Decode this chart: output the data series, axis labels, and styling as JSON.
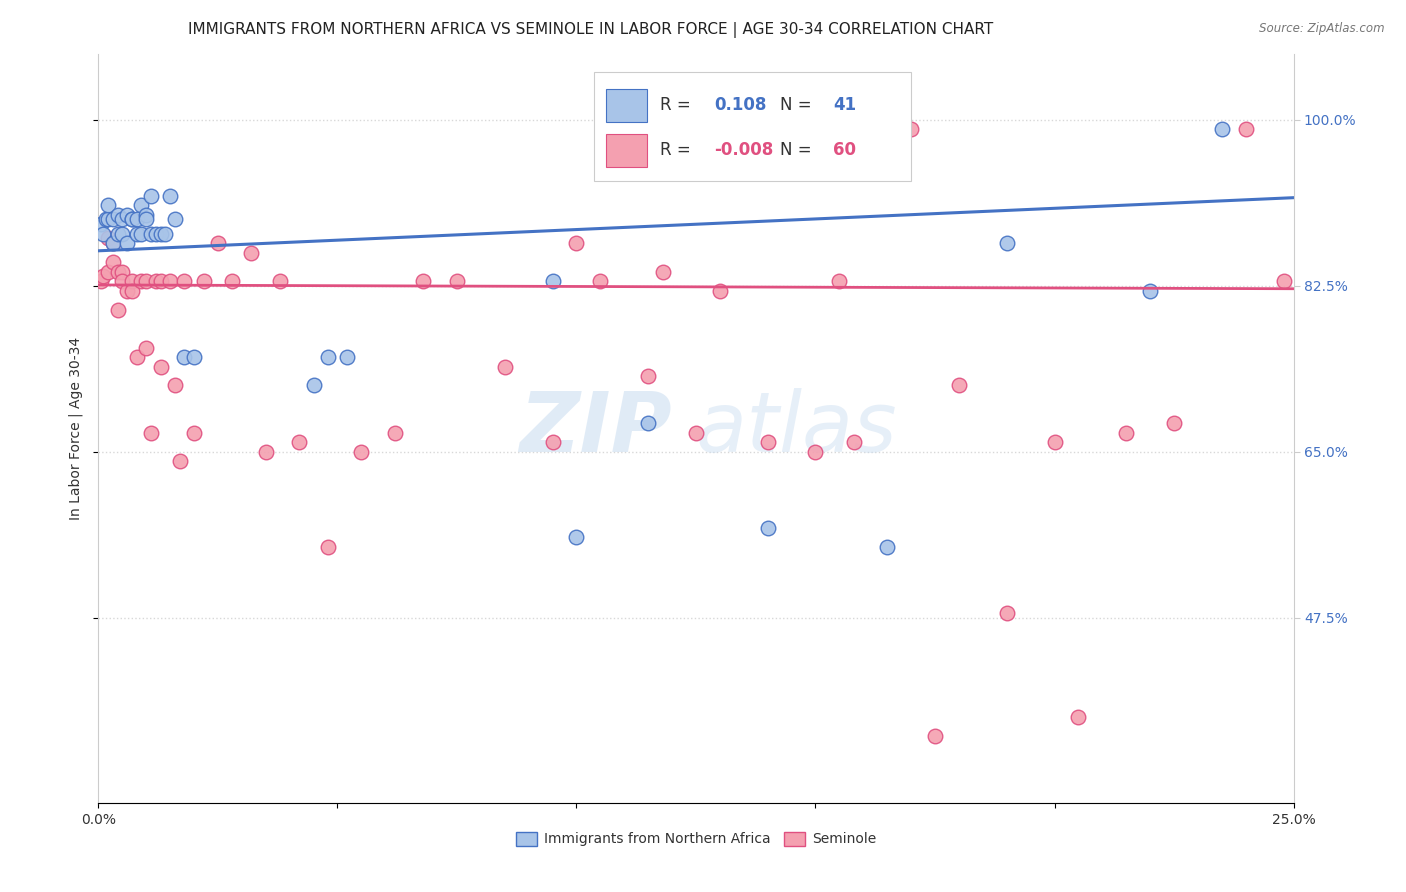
{
  "title": "IMMIGRANTS FROM NORTHERN AFRICA VS SEMINOLE IN LABOR FORCE | AGE 30-34 CORRELATION CHART",
  "source": "Source: ZipAtlas.com",
  "ylabel": "In Labor Force | Age 30-34",
  "xlim": [
    0.0,
    0.25
  ],
  "ylim": [
    0.28,
    1.07
  ],
  "yticks": [
    0.475,
    0.65,
    0.825,
    1.0
  ],
  "ytick_labels": [
    "47.5%",
    "65.0%",
    "82.5%",
    "100.0%"
  ],
  "xticks": [
    0.0,
    0.05,
    0.1,
    0.15,
    0.2,
    0.25
  ],
  "xtick_labels": [
    "0.0%",
    "",
    "",
    "",
    "",
    "25.0%"
  ],
  "blue_R": 0.108,
  "blue_N": 41,
  "pink_R": -0.008,
  "pink_N": 60,
  "blue_scatter_x": [
    0.0005,
    0.001,
    0.0015,
    0.002,
    0.002,
    0.003,
    0.003,
    0.004,
    0.004,
    0.005,
    0.005,
    0.006,
    0.006,
    0.007,
    0.007,
    0.008,
    0.008,
    0.009,
    0.009,
    0.01,
    0.01,
    0.011,
    0.011,
    0.012,
    0.013,
    0.014,
    0.015,
    0.016,
    0.018,
    0.02,
    0.045,
    0.048,
    0.052,
    0.095,
    0.1,
    0.115,
    0.14,
    0.165,
    0.19,
    0.22,
    0.235
  ],
  "blue_scatter_y": [
    0.89,
    0.88,
    0.895,
    0.895,
    0.91,
    0.895,
    0.87,
    0.9,
    0.88,
    0.88,
    0.895,
    0.87,
    0.9,
    0.895,
    0.895,
    0.895,
    0.88,
    0.91,
    0.88,
    0.9,
    0.895,
    0.88,
    0.92,
    0.88,
    0.88,
    0.88,
    0.92,
    0.895,
    0.75,
    0.75,
    0.72,
    0.75,
    0.75,
    0.83,
    0.56,
    0.68,
    0.57,
    0.55,
    0.87,
    0.82,
    0.99
  ],
  "pink_scatter_x": [
    0.0005,
    0.001,
    0.002,
    0.002,
    0.003,
    0.003,
    0.004,
    0.004,
    0.005,
    0.005,
    0.006,
    0.007,
    0.007,
    0.008,
    0.009,
    0.01,
    0.01,
    0.011,
    0.012,
    0.013,
    0.013,
    0.015,
    0.016,
    0.017,
    0.018,
    0.02,
    0.022,
    0.025,
    0.028,
    0.032,
    0.035,
    0.038,
    0.042,
    0.048,
    0.055,
    0.062,
    0.068,
    0.075,
    0.085,
    0.095,
    0.105,
    0.115,
    0.125,
    0.14,
    0.15,
    0.158,
    0.17,
    0.18,
    0.19,
    0.2,
    0.215,
    0.225,
    0.24,
    0.248,
    0.1,
    0.118,
    0.13,
    0.155,
    0.175,
    0.205
  ],
  "pink_scatter_y": [
    0.83,
    0.835,
    0.875,
    0.84,
    0.87,
    0.85,
    0.84,
    0.8,
    0.84,
    0.83,
    0.82,
    0.83,
    0.82,
    0.75,
    0.83,
    0.83,
    0.76,
    0.67,
    0.83,
    0.83,
    0.74,
    0.83,
    0.72,
    0.64,
    0.83,
    0.67,
    0.83,
    0.87,
    0.83,
    0.86,
    0.65,
    0.83,
    0.66,
    0.55,
    0.65,
    0.67,
    0.83,
    0.83,
    0.74,
    0.66,
    0.83,
    0.73,
    0.67,
    0.66,
    0.65,
    0.66,
    0.99,
    0.72,
    0.48,
    0.66,
    0.67,
    0.68,
    0.99,
    0.83,
    0.87,
    0.84,
    0.82,
    0.83,
    0.35,
    0.37
  ],
  "blue_line_x": [
    0.0,
    0.25
  ],
  "blue_line_y": [
    0.862,
    0.918
  ],
  "pink_line_x": [
    0.0,
    0.25
  ],
  "pink_line_y": [
    0.826,
    0.822
  ],
  "blue_color": "#A8C4E8",
  "pink_color": "#F4A0B0",
  "blue_line_color": "#4472C4",
  "pink_line_color": "#E05080",
  "background_color": "#FFFFFF",
  "grid_color": "#D8D8D8",
  "title_fontsize": 11,
  "axis_label_fontsize": 10,
  "tick_fontsize": 10,
  "watermark_top": "ZIP",
  "watermark_bottom": "atlas"
}
